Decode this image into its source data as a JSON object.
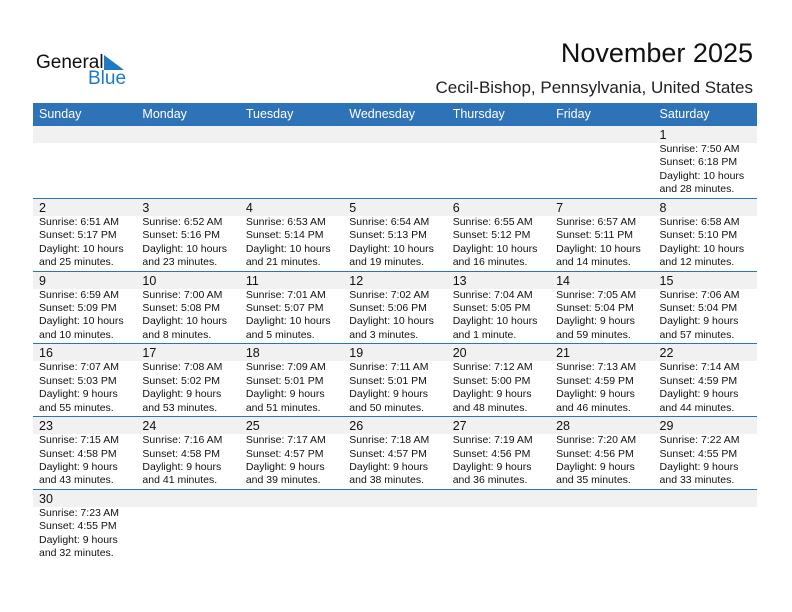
{
  "logo": {
    "text1": "General",
    "text2": "Blue"
  },
  "header": {
    "title": "November 2025",
    "location": "Cecil-Bishop, Pennsylvania, United States"
  },
  "colors": {
    "accent": "#2e73b8",
    "logo_blue": "#1f7ac4",
    "band": "#f1f1f1"
  },
  "weekdays": [
    "Sunday",
    "Monday",
    "Tuesday",
    "Wednesday",
    "Thursday",
    "Friday",
    "Saturday"
  ],
  "weeks": [
    [
      null,
      null,
      null,
      null,
      null,
      null,
      {
        "day": "1",
        "sunrise": "Sunrise: 7:50 AM",
        "sunset": "Sunset: 6:18 PM",
        "daylight1": "Daylight: 10 hours",
        "daylight2": "and 28 minutes."
      }
    ],
    [
      {
        "day": "2",
        "sunrise": "Sunrise: 6:51 AM",
        "sunset": "Sunset: 5:17 PM",
        "daylight1": "Daylight: 10 hours",
        "daylight2": "and 25 minutes."
      },
      {
        "day": "3",
        "sunrise": "Sunrise: 6:52 AM",
        "sunset": "Sunset: 5:16 PM",
        "daylight1": "Daylight: 10 hours",
        "daylight2": "and 23 minutes."
      },
      {
        "day": "4",
        "sunrise": "Sunrise: 6:53 AM",
        "sunset": "Sunset: 5:14 PM",
        "daylight1": "Daylight: 10 hours",
        "daylight2": "and 21 minutes."
      },
      {
        "day": "5",
        "sunrise": "Sunrise: 6:54 AM",
        "sunset": "Sunset: 5:13 PM",
        "daylight1": "Daylight: 10 hours",
        "daylight2": "and 19 minutes."
      },
      {
        "day": "6",
        "sunrise": "Sunrise: 6:55 AM",
        "sunset": "Sunset: 5:12 PM",
        "daylight1": "Daylight: 10 hours",
        "daylight2": "and 16 minutes."
      },
      {
        "day": "7",
        "sunrise": "Sunrise: 6:57 AM",
        "sunset": "Sunset: 5:11 PM",
        "daylight1": "Daylight: 10 hours",
        "daylight2": "and 14 minutes."
      },
      {
        "day": "8",
        "sunrise": "Sunrise: 6:58 AM",
        "sunset": "Sunset: 5:10 PM",
        "daylight1": "Daylight: 10 hours",
        "daylight2": "and 12 minutes."
      }
    ],
    [
      {
        "day": "9",
        "sunrise": "Sunrise: 6:59 AM",
        "sunset": "Sunset: 5:09 PM",
        "daylight1": "Daylight: 10 hours",
        "daylight2": "and 10 minutes."
      },
      {
        "day": "10",
        "sunrise": "Sunrise: 7:00 AM",
        "sunset": "Sunset: 5:08 PM",
        "daylight1": "Daylight: 10 hours",
        "daylight2": "and 8 minutes."
      },
      {
        "day": "11",
        "sunrise": "Sunrise: 7:01 AM",
        "sunset": "Sunset: 5:07 PM",
        "daylight1": "Daylight: 10 hours",
        "daylight2": "and 5 minutes."
      },
      {
        "day": "12",
        "sunrise": "Sunrise: 7:02 AM",
        "sunset": "Sunset: 5:06 PM",
        "daylight1": "Daylight: 10 hours",
        "daylight2": "and 3 minutes."
      },
      {
        "day": "13",
        "sunrise": "Sunrise: 7:04 AM",
        "sunset": "Sunset: 5:05 PM",
        "daylight1": "Daylight: 10 hours",
        "daylight2": "and 1 minute."
      },
      {
        "day": "14",
        "sunrise": "Sunrise: 7:05 AM",
        "sunset": "Sunset: 5:04 PM",
        "daylight1": "Daylight: 9 hours",
        "daylight2": "and 59 minutes."
      },
      {
        "day": "15",
        "sunrise": "Sunrise: 7:06 AM",
        "sunset": "Sunset: 5:04 PM",
        "daylight1": "Daylight: 9 hours",
        "daylight2": "and 57 minutes."
      }
    ],
    [
      {
        "day": "16",
        "sunrise": "Sunrise: 7:07 AM",
        "sunset": "Sunset: 5:03 PM",
        "daylight1": "Daylight: 9 hours",
        "daylight2": "and 55 minutes."
      },
      {
        "day": "17",
        "sunrise": "Sunrise: 7:08 AM",
        "sunset": "Sunset: 5:02 PM",
        "daylight1": "Daylight: 9 hours",
        "daylight2": "and 53 minutes."
      },
      {
        "day": "18",
        "sunrise": "Sunrise: 7:09 AM",
        "sunset": "Sunset: 5:01 PM",
        "daylight1": "Daylight: 9 hours",
        "daylight2": "and 51 minutes."
      },
      {
        "day": "19",
        "sunrise": "Sunrise: 7:11 AM",
        "sunset": "Sunset: 5:01 PM",
        "daylight1": "Daylight: 9 hours",
        "daylight2": "and 50 minutes."
      },
      {
        "day": "20",
        "sunrise": "Sunrise: 7:12 AM",
        "sunset": "Sunset: 5:00 PM",
        "daylight1": "Daylight: 9 hours",
        "daylight2": "and 48 minutes."
      },
      {
        "day": "21",
        "sunrise": "Sunrise: 7:13 AM",
        "sunset": "Sunset: 4:59 PM",
        "daylight1": "Daylight: 9 hours",
        "daylight2": "and 46 minutes."
      },
      {
        "day": "22",
        "sunrise": "Sunrise: 7:14 AM",
        "sunset": "Sunset: 4:59 PM",
        "daylight1": "Daylight: 9 hours",
        "daylight2": "and 44 minutes."
      }
    ],
    [
      {
        "day": "23",
        "sunrise": "Sunrise: 7:15 AM",
        "sunset": "Sunset: 4:58 PM",
        "daylight1": "Daylight: 9 hours",
        "daylight2": "and 43 minutes."
      },
      {
        "day": "24",
        "sunrise": "Sunrise: 7:16 AM",
        "sunset": "Sunset: 4:58 PM",
        "daylight1": "Daylight: 9 hours",
        "daylight2": "and 41 minutes."
      },
      {
        "day": "25",
        "sunrise": "Sunrise: 7:17 AM",
        "sunset": "Sunset: 4:57 PM",
        "daylight1": "Daylight: 9 hours",
        "daylight2": "and 39 minutes."
      },
      {
        "day": "26",
        "sunrise": "Sunrise: 7:18 AM",
        "sunset": "Sunset: 4:57 PM",
        "daylight1": "Daylight: 9 hours",
        "daylight2": "and 38 minutes."
      },
      {
        "day": "27",
        "sunrise": "Sunrise: 7:19 AM",
        "sunset": "Sunset: 4:56 PM",
        "daylight1": "Daylight: 9 hours",
        "daylight2": "and 36 minutes."
      },
      {
        "day": "28",
        "sunrise": "Sunrise: 7:20 AM",
        "sunset": "Sunset: 4:56 PM",
        "daylight1": "Daylight: 9 hours",
        "daylight2": "and 35 minutes."
      },
      {
        "day": "29",
        "sunrise": "Sunrise: 7:22 AM",
        "sunset": "Sunset: 4:55 PM",
        "daylight1": "Daylight: 9 hours",
        "daylight2": "and 33 minutes."
      }
    ],
    [
      {
        "day": "30",
        "sunrise": "Sunrise: 7:23 AM",
        "sunset": "Sunset: 4:55 PM",
        "daylight1": "Daylight: 9 hours",
        "daylight2": "and 32 minutes."
      },
      null,
      null,
      null,
      null,
      null,
      null
    ]
  ]
}
